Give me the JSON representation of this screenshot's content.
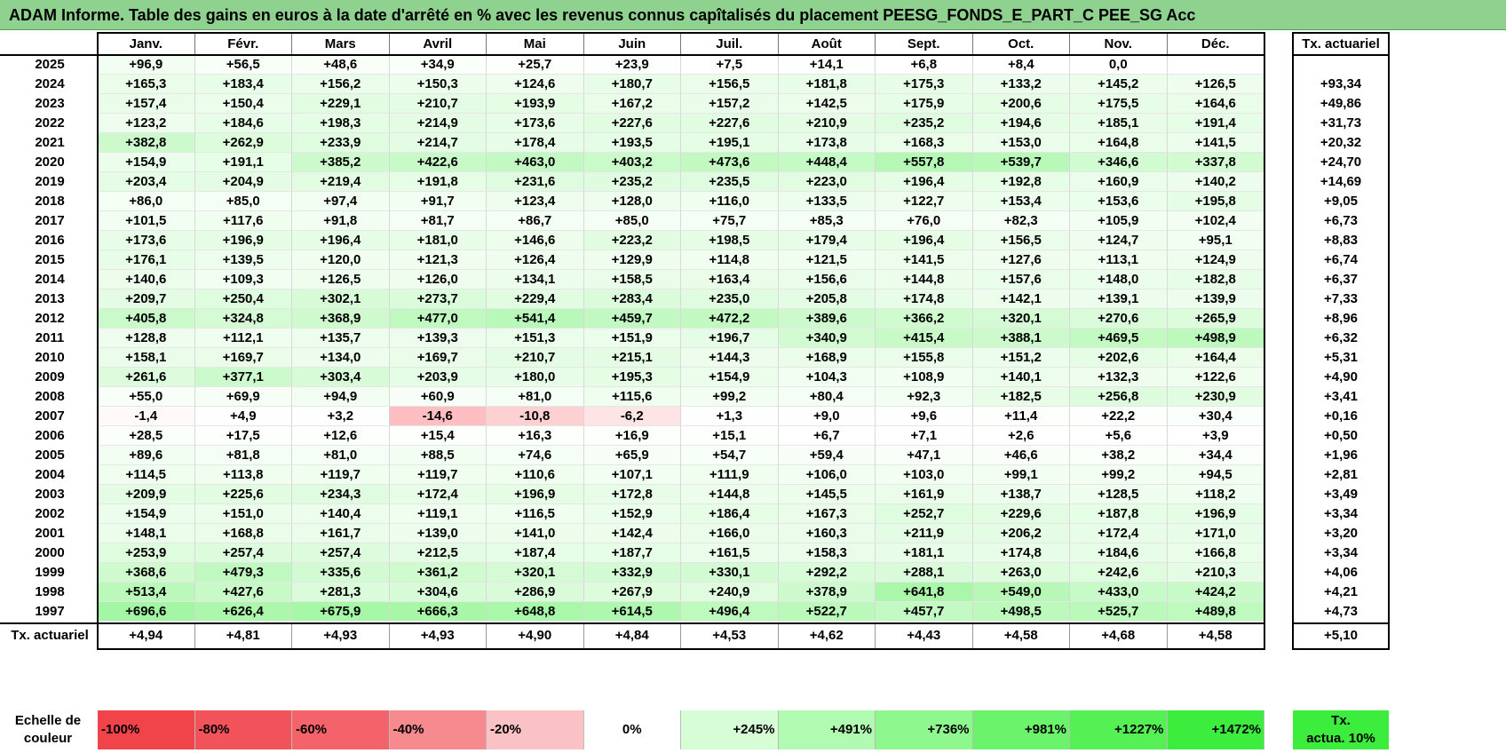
{
  "title": "ADAM Informe. Table des gains en euros à la date d'arrêté en % avec les revenus connus capîtalisés du placement PEESG_FONDS_E_PART_C PEE_SG Acc",
  "months": [
    "Janv.",
    "Févr.",
    "Mars",
    "Avril",
    "Mai",
    "Juin",
    "Juil.",
    "Août",
    "Sept.",
    "Oct.",
    "Nov.",
    "Déc."
  ],
  "tx_header": "Tx. actuariel",
  "rows": [
    {
      "year": "2025",
      "values": [
        "+96,9",
        "+56,5",
        "+48,6",
        "+34,9",
        "+25,7",
        "+23,9",
        "+7,5",
        "+14,1",
        "+6,8",
        "+8,4",
        "0,0",
        ""
      ],
      "tx": ""
    },
    {
      "year": "2024",
      "values": [
        "+165,3",
        "+183,4",
        "+156,2",
        "+150,3",
        "+124,6",
        "+180,7",
        "+156,5",
        "+181,8",
        "+175,3",
        "+133,2",
        "+145,2",
        "+126,5"
      ],
      "tx": "+93,34"
    },
    {
      "year": "2023",
      "values": [
        "+157,4",
        "+150,4",
        "+229,1",
        "+210,7",
        "+193,9",
        "+167,2",
        "+157,2",
        "+142,5",
        "+175,9",
        "+200,6",
        "+175,5",
        "+164,6"
      ],
      "tx": "+49,86"
    },
    {
      "year": "2022",
      "values": [
        "+123,2",
        "+184,6",
        "+198,3",
        "+214,9",
        "+173,6",
        "+227,6",
        "+227,6",
        "+210,9",
        "+235,2",
        "+194,6",
        "+185,1",
        "+191,4"
      ],
      "tx": "+31,73"
    },
    {
      "year": "2021",
      "values": [
        "+382,8",
        "+262,9",
        "+233,9",
        "+214,7",
        "+178,4",
        "+193,5",
        "+195,1",
        "+173,8",
        "+168,3",
        "+153,0",
        "+164,8",
        "+141,5"
      ],
      "tx": "+20,32"
    },
    {
      "year": "2020",
      "values": [
        "+154,9",
        "+191,1",
        "+385,2",
        "+422,6",
        "+463,0",
        "+403,2",
        "+473,6",
        "+448,4",
        "+557,8",
        "+539,7",
        "+346,6",
        "+337,8"
      ],
      "tx": "+24,70"
    },
    {
      "year": "2019",
      "values": [
        "+203,4",
        "+204,9",
        "+219,4",
        "+191,8",
        "+231,6",
        "+235,2",
        "+235,5",
        "+223,0",
        "+196,4",
        "+192,8",
        "+160,9",
        "+140,2"
      ],
      "tx": "+14,69"
    },
    {
      "year": "2018",
      "values": [
        "+86,0",
        "+85,0",
        "+97,4",
        "+91,7",
        "+123,4",
        "+128,0",
        "+116,0",
        "+133,5",
        "+122,7",
        "+153,4",
        "+153,6",
        "+195,8"
      ],
      "tx": "+9,05"
    },
    {
      "year": "2017",
      "values": [
        "+101,5",
        "+117,6",
        "+91,8",
        "+81,7",
        "+86,7",
        "+85,0",
        "+75,7",
        "+85,3",
        "+76,0",
        "+82,3",
        "+105,9",
        "+102,4"
      ],
      "tx": "+6,73"
    },
    {
      "year": "2016",
      "values": [
        "+173,6",
        "+196,9",
        "+196,4",
        "+181,0",
        "+146,6",
        "+223,2",
        "+198,5",
        "+179,4",
        "+196,4",
        "+156,5",
        "+124,7",
        "+95,1"
      ],
      "tx": "+8,83"
    },
    {
      "year": "2015",
      "values": [
        "+176,1",
        "+139,5",
        "+120,0",
        "+121,3",
        "+126,4",
        "+129,9",
        "+114,8",
        "+121,5",
        "+141,5",
        "+127,6",
        "+113,1",
        "+124,9"
      ],
      "tx": "+6,74"
    },
    {
      "year": "2014",
      "values": [
        "+140,6",
        "+109,3",
        "+126,5",
        "+126,0",
        "+134,1",
        "+158,5",
        "+163,4",
        "+156,6",
        "+144,8",
        "+157,6",
        "+148,0",
        "+182,8"
      ],
      "tx": "+6,37"
    },
    {
      "year": "2013",
      "values": [
        "+209,7",
        "+250,4",
        "+302,1",
        "+273,7",
        "+229,4",
        "+283,4",
        "+235,0",
        "+205,8",
        "+174,8",
        "+142,1",
        "+139,1",
        "+139,9"
      ],
      "tx": "+7,33"
    },
    {
      "year": "2012",
      "values": [
        "+405,8",
        "+324,8",
        "+368,9",
        "+477,0",
        "+541,4",
        "+459,7",
        "+472,2",
        "+389,6",
        "+366,2",
        "+320,1",
        "+270,6",
        "+265,9"
      ],
      "tx": "+8,96"
    },
    {
      "year": "2011",
      "values": [
        "+128,8",
        "+112,1",
        "+135,7",
        "+139,3",
        "+151,3",
        "+151,9",
        "+196,7",
        "+340,9",
        "+415,4",
        "+388,1",
        "+469,5",
        "+498,9"
      ],
      "tx": "+6,32"
    },
    {
      "year": "2010",
      "values": [
        "+158,1",
        "+169,7",
        "+134,0",
        "+169,7",
        "+210,7",
        "+215,1",
        "+144,3",
        "+168,9",
        "+155,8",
        "+151,2",
        "+202,6",
        "+164,4"
      ],
      "tx": "+5,31"
    },
    {
      "year": "2009",
      "values": [
        "+261,6",
        "+377,1",
        "+303,4",
        "+203,9",
        "+180,0",
        "+195,3",
        "+154,9",
        "+104,3",
        "+108,9",
        "+140,1",
        "+132,3",
        "+122,6"
      ],
      "tx": "+4,90"
    },
    {
      "year": "2008",
      "values": [
        "+55,0",
        "+69,9",
        "+94,9",
        "+60,9",
        "+81,0",
        "+115,6",
        "+99,2",
        "+80,4",
        "+92,3",
        "+182,5",
        "+256,8",
        "+230,9"
      ],
      "tx": "+3,41"
    },
    {
      "year": "2007",
      "values": [
        "-1,4",
        "+4,9",
        "+3,2",
        "-14,6",
        "-10,8",
        "-6,2",
        "+1,3",
        "+9,0",
        "+9,6",
        "+11,4",
        "+22,2",
        "+30,4"
      ],
      "tx": "+0,16"
    },
    {
      "year": "2006",
      "values": [
        "+28,5",
        "+17,5",
        "+12,6",
        "+15,4",
        "+16,3",
        "+16,9",
        "+15,1",
        "+6,7",
        "+7,1",
        "+2,6",
        "+5,6",
        "+3,9"
      ],
      "tx": "+0,50"
    },
    {
      "year": "2005",
      "values": [
        "+89,6",
        "+81,8",
        "+81,0",
        "+88,5",
        "+74,6",
        "+65,9",
        "+54,7",
        "+59,4",
        "+47,1",
        "+46,6",
        "+38,2",
        "+34,4"
      ],
      "tx": "+1,96"
    },
    {
      "year": "2004",
      "values": [
        "+114,5",
        "+113,8",
        "+119,7",
        "+119,7",
        "+110,6",
        "+107,1",
        "+111,9",
        "+106,0",
        "+103,0",
        "+99,1",
        "+99,2",
        "+94,5"
      ],
      "tx": "+2,81"
    },
    {
      "year": "2003",
      "values": [
        "+209,9",
        "+225,6",
        "+234,3",
        "+172,4",
        "+196,9",
        "+172,8",
        "+144,8",
        "+145,5",
        "+161,9",
        "+138,7",
        "+128,5",
        "+118,2"
      ],
      "tx": "+3,49"
    },
    {
      "year": "2002",
      "values": [
        "+154,9",
        "+151,0",
        "+140,4",
        "+119,1",
        "+116,5",
        "+152,9",
        "+186,4",
        "+167,3",
        "+252,7",
        "+229,6",
        "+187,8",
        "+196,9"
      ],
      "tx": "+3,34"
    },
    {
      "year": "2001",
      "values": [
        "+148,1",
        "+168,8",
        "+161,7",
        "+139,0",
        "+141,0",
        "+142,4",
        "+166,0",
        "+160,3",
        "+211,9",
        "+206,2",
        "+172,4",
        "+171,0"
      ],
      "tx": "+3,20"
    },
    {
      "year": "2000",
      "values": [
        "+253,9",
        "+257,4",
        "+257,4",
        "+212,5",
        "+187,4",
        "+187,7",
        "+161,5",
        "+158,3",
        "+181,1",
        "+174,8",
        "+184,6",
        "+166,8"
      ],
      "tx": "+3,34"
    },
    {
      "year": "1999",
      "values": [
        "+368,6",
        "+479,3",
        "+335,6",
        "+361,2",
        "+320,1",
        "+332,9",
        "+330,1",
        "+292,2",
        "+288,1",
        "+263,0",
        "+242,6",
        "+210,3"
      ],
      "tx": "+4,06"
    },
    {
      "year": "1998",
      "values": [
        "+513,4",
        "+427,6",
        "+281,3",
        "+304,6",
        "+286,9",
        "+267,9",
        "+240,9",
        "+378,9",
        "+641,8",
        "+549,0",
        "+433,0",
        "+424,2"
      ],
      "tx": "+4,21"
    },
    {
      "year": "1997",
      "values": [
        "+696,6",
        "+626,4",
        "+675,9",
        "+666,3",
        "+648,8",
        "+614,5",
        "+496,4",
        "+522,7",
        "+457,7",
        "+498,5",
        "+525,7",
        "+489,8"
      ],
      "tx": "+4,73"
    }
  ],
  "footer": {
    "label": "Tx. actuariel",
    "values": [
      "+4,94",
      "+4,81",
      "+4,93",
      "+4,93",
      "+4,90",
      "+4,84",
      "+4,53",
      "+4,62",
      "+4,43",
      "+4,58",
      "+4,68",
      "+4,58"
    ],
    "tx": "+5,10"
  },
  "legend": {
    "label_line1": "Echelle de",
    "label_line2": "couleur",
    "scale": [
      {
        "label": "-100%",
        "color": "#f0434a"
      },
      {
        "label": "-80%",
        "color": "#f2535a"
      },
      {
        "label": "-60%",
        "color": "#f46369"
      },
      {
        "label": "-40%",
        "color": "#f68a8e"
      },
      {
        "label": "-20%",
        "color": "#fac2c4"
      },
      {
        "label": "0%",
        "color": "#ffffff"
      },
      {
        "label": "+245%",
        "color": "#d6fdd6"
      },
      {
        "label": "+491%",
        "color": "#b1fab1"
      },
      {
        "label": "+736%",
        "color": "#8ef78e"
      },
      {
        "label": "+981%",
        "color": "#6cf36c"
      },
      {
        "label": "+1227%",
        "color": "#54f054"
      },
      {
        "label": "+1472%",
        "color": "#3ded3d"
      }
    ],
    "tx_line1": "Tx.",
    "tx_line2": "actua. 10%",
    "tx_color": "#3ded3d"
  }
}
